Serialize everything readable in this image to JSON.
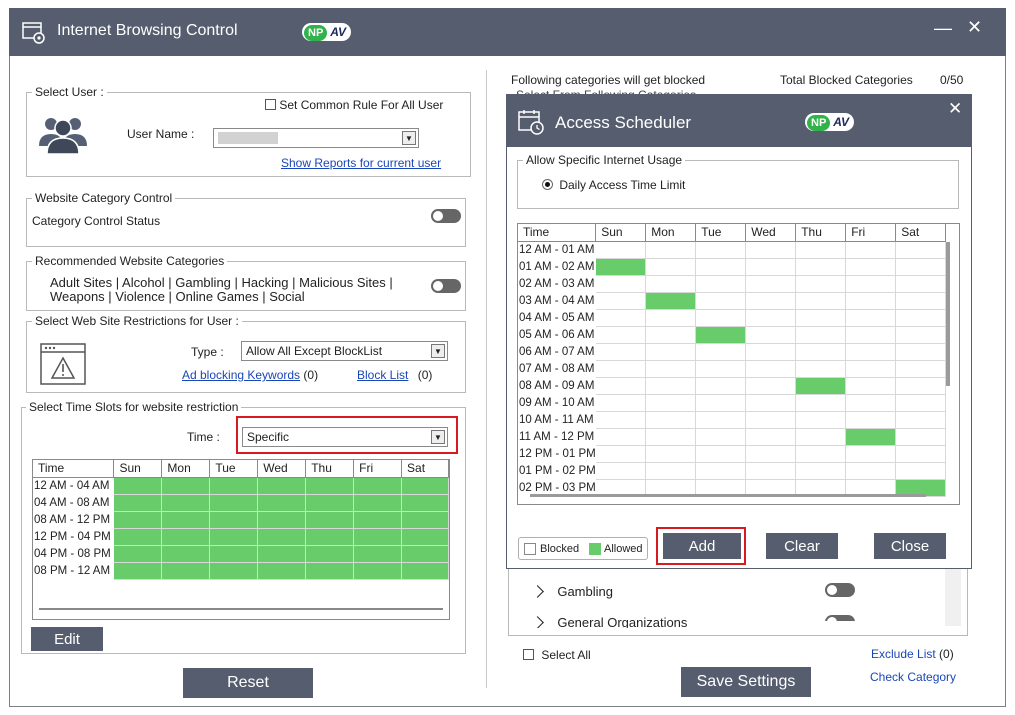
{
  "window": {
    "title": "Internet Browsing Control",
    "brand_np": "NP",
    "brand_av": "AV"
  },
  "select_user": {
    "legend": "Select User :",
    "common_rule_label": "Set Common Rule For All User",
    "username_label": "User Name :",
    "username_value": "",
    "reports_link": "Show Reports for current user"
  },
  "category_control": {
    "legend": "Website Category Control",
    "status_label": "Category Control Status"
  },
  "recommended": {
    "legend": "Recommended Website Categories",
    "line1": "Adult Sites | Alcohol | Gambling | Hacking | Malicious Sites |",
    "line2": "Weapons | Violence | Online Games | Social"
  },
  "restrictions": {
    "legend": "Select Web Site Restrictions for User :",
    "type_label": "Type :",
    "type_value": "Allow All Except BlockList",
    "adblock_link": "Ad blocking Keywords",
    "adblock_count": "(0)",
    "blocklist_link": "Block List",
    "blocklist_count": "(0)"
  },
  "time_slots": {
    "legend": "Select Time Slots for website restriction",
    "time_label": "Time :",
    "time_value": "Specific",
    "headers": [
      "Time",
      "Sun",
      "Mon",
      "Tue",
      "Wed",
      "Thu",
      "Fri",
      "Sat"
    ],
    "rows": [
      {
        "label": "12 AM - 04 AM",
        "cells": [
          1,
          1,
          1,
          1,
          1,
          1,
          1
        ]
      },
      {
        "label": "04 AM - 08 AM",
        "cells": [
          1,
          1,
          1,
          1,
          1,
          1,
          1
        ]
      },
      {
        "label": "08 AM - 12 PM",
        "cells": [
          1,
          1,
          1,
          1,
          1,
          1,
          1
        ]
      },
      {
        "label": "12 PM - 04 PM",
        "cells": [
          1,
          1,
          1,
          1,
          1,
          1,
          1
        ]
      },
      {
        "label": "04 PM - 08 PM",
        "cells": [
          1,
          1,
          1,
          1,
          1,
          1,
          1
        ]
      },
      {
        "label": "08 PM - 12 AM",
        "cells": [
          1,
          1,
          1,
          1,
          1,
          1,
          1
        ]
      }
    ],
    "edit_button": "Edit"
  },
  "reset_button": "Reset",
  "right_panel": {
    "blocked_info": "Following categories will get blocked",
    "total_label": "Total Blocked Categories",
    "total_value": "0/50",
    "cut_text": "Select From Following Categories",
    "categories": [
      {
        "name": "Gambling",
        "enabled": false
      },
      {
        "name": "General Organizations",
        "enabled": false
      }
    ],
    "select_all_label": "Select All",
    "exclude_link": "Exclude List",
    "exclude_count": "(0)",
    "save_button": "Save Settings",
    "check_link": "Check Category"
  },
  "scheduler": {
    "title": "Access Scheduler",
    "brand_np": "NP",
    "brand_av": "AV",
    "allow_legend": "Allow Specific Internet Usage",
    "daily_limit_label": "Daily Access Time Limit",
    "headers": [
      "Time",
      "Sun",
      "Mon",
      "Tue",
      "Wed",
      "Thu",
      "Fri",
      "Sat"
    ],
    "rows": [
      {
        "label": "12 AM - 01 AM",
        "cells": [
          0,
          0,
          0,
          0,
          0,
          0,
          0
        ]
      },
      {
        "label": "01 AM - 02 AM",
        "cells": [
          1,
          0,
          0,
          0,
          0,
          0,
          0
        ]
      },
      {
        "label": "02 AM - 03 AM",
        "cells": [
          0,
          0,
          0,
          0,
          0,
          0,
          0
        ]
      },
      {
        "label": "03 AM - 04 AM",
        "cells": [
          0,
          1,
          0,
          0,
          0,
          0,
          0
        ]
      },
      {
        "label": "04 AM - 05 AM",
        "cells": [
          0,
          0,
          0,
          0,
          0,
          0,
          0
        ]
      },
      {
        "label": "05 AM - 06 AM",
        "cells": [
          0,
          0,
          1,
          0,
          0,
          0,
          0
        ]
      },
      {
        "label": "06 AM - 07 AM",
        "cells": [
          0,
          0,
          0,
          0,
          0,
          0,
          0
        ]
      },
      {
        "label": "07 AM - 08 AM",
        "cells": [
          0,
          0,
          0,
          0,
          0,
          0,
          0
        ]
      },
      {
        "label": "08 AM - 09 AM",
        "cells": [
          0,
          0,
          0,
          0,
          1,
          0,
          0
        ]
      },
      {
        "label": "09 AM - 10 AM",
        "cells": [
          0,
          0,
          0,
          0,
          0,
          0,
          0
        ]
      },
      {
        "label": "10 AM - 11 AM",
        "cells": [
          0,
          0,
          0,
          0,
          0,
          0,
          0
        ]
      },
      {
        "label": "11 AM - 12 PM",
        "cells": [
          0,
          0,
          0,
          0,
          0,
          1,
          0
        ]
      },
      {
        "label": "12 PM - 01 PM",
        "cells": [
          0,
          0,
          0,
          0,
          0,
          0,
          0
        ]
      },
      {
        "label": "01 PM - 02 PM",
        "cells": [
          0,
          0,
          0,
          0,
          0,
          0,
          0
        ]
      },
      {
        "label": "02 PM - 03 PM",
        "cells": [
          0,
          0,
          0,
          0,
          0,
          0,
          1
        ]
      }
    ],
    "legend_blocked": "Blocked",
    "legend_allowed": "Allowed",
    "add_button": "Add",
    "clear_button": "Clear",
    "close_button": "Close"
  },
  "colors": {
    "titlebar": "#555d6e",
    "allowed": "#69cc6a",
    "highlight": "#d71920",
    "link": "#1a47b8"
  }
}
